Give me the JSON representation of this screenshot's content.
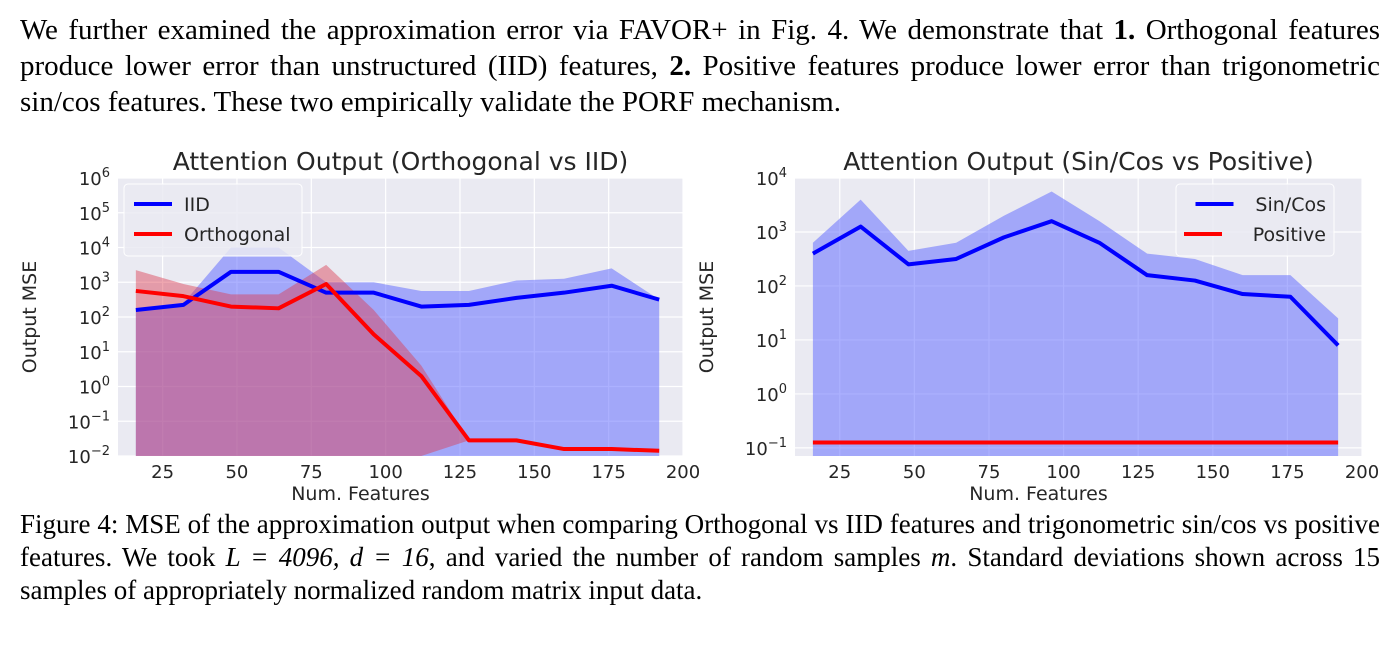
{
  "paragraph": {
    "p1": "We further examined the approximation error via FAVOR+ in Fig. 4. We demonstrate that ",
    "b1": "1.",
    "p2": " Orthogonal features produce lower error than unstructured (IID) features, ",
    "b2": "2.",
    "p3": " Positive features produce lower error than trigonometric ",
    "math": "sin/cos",
    "p4": " features. These two empirically validate the PORF mechanism."
  },
  "caption": {
    "label": "Figure 4:",
    "t1": " MSE of the approximation output when comparing Orthogonal vs IID features and trigonometric ",
    "m1": "sin/cos",
    "t2": " vs positive features. We took ",
    "m2": "L = 4096, d = 16",
    "t3": ", and varied the number of random samples ",
    "m3": "m",
    "t4": ". Standard deviations shown across 15 samples of appropriately normalized random matrix input data."
  },
  "chart_data": [
    {
      "type": "line",
      "title": "Attention Output (Orthogonal vs IID)",
      "xlabel": "Num. Features",
      "ylabel": "Output MSE",
      "yscale": "log",
      "xlim": [
        10,
        200
      ],
      "ylim_exp": [
        -2,
        6
      ],
      "xticks": [
        25,
        50,
        75,
        100,
        125,
        150,
        175,
        200
      ],
      "yticks": [
        "10^-2",
        "10^-1",
        "10^0",
        "10^1",
        "10^2",
        "10^3",
        "10^4",
        "10^5",
        "10^6"
      ],
      "legend": "top-left",
      "grid": true,
      "series": [
        {
          "name": "IID",
          "color": "#0000ff",
          "x": [
            16,
            32,
            48,
            64,
            80,
            96,
            112,
            128,
            144,
            160,
            176,
            192
          ],
          "y_log10": [
            2.2,
            2.35,
            3.3,
            3.3,
            2.7,
            2.7,
            2.3,
            2.35,
            2.55,
            2.7,
            2.9,
            2.5
          ],
          "band_upper_log10": [
            2.2,
            2.4,
            4.0,
            4.0,
            3.0,
            3.0,
            2.75,
            2.75,
            3.05,
            3.1,
            3.4,
            2.5
          ],
          "band_lower_log10": [
            -2,
            -2,
            -2,
            -2,
            -2,
            -2,
            -2,
            -2,
            -2,
            -2,
            -2,
            -2
          ]
        },
        {
          "name": "Orthogonal",
          "color": "#ff0000",
          "x": [
            16,
            32,
            48,
            64,
            80,
            96,
            112,
            128,
            144,
            160,
            176,
            192
          ],
          "y_log10": [
            2.75,
            2.6,
            2.3,
            2.25,
            2.95,
            1.5,
            0.3,
            -1.55,
            -1.55,
            -1.8,
            -1.8,
            -1.85
          ],
          "band_upper_log10": [
            3.35,
            2.95,
            2.65,
            2.65,
            3.5,
            2.2,
            0.6,
            -1.55,
            -1.55,
            -1.8,
            -1.8,
            -1.85
          ],
          "band_lower_log10": [
            -2,
            -2,
            -2,
            -2,
            -2,
            -2,
            -2,
            -1.55,
            -1.55,
            -1.8,
            -1.8,
            -1.85
          ]
        }
      ]
    },
    {
      "type": "line",
      "title": "Attention Output (Sin/Cos vs Positive)",
      "xlabel": "Num. Features",
      "ylabel": "Output MSE",
      "yscale": "log",
      "xlim": [
        10,
        200
      ],
      "ylim_exp": [
        -1.15,
        4
      ],
      "xticks": [
        25,
        50,
        75,
        100,
        125,
        150,
        175,
        200
      ],
      "yticks": [
        "10^-1",
        "10^0",
        "10^1",
        "10^2",
        "10^3",
        "10^4"
      ],
      "legend": "top-right",
      "grid": true,
      "series": [
        {
          "name": "Sin/Cos",
          "color": "#0000ff",
          "x": [
            16,
            32,
            48,
            64,
            80,
            96,
            112,
            128,
            144,
            160,
            176,
            192
          ],
          "y_log10": [
            2.6,
            3.1,
            2.4,
            2.5,
            2.9,
            3.2,
            2.8,
            2.2,
            2.1,
            1.85,
            1.8,
            0.9
          ],
          "band_upper_log10": [
            2.8,
            3.6,
            2.65,
            2.8,
            3.3,
            3.75,
            3.2,
            2.6,
            2.5,
            2.2,
            2.2,
            1.4
          ],
          "band_lower_log10": [
            -1.15,
            -1.15,
            -1.15,
            -1.15,
            -1.15,
            -1.15,
            -1.15,
            -1.15,
            -1.15,
            -1.15,
            -1.15,
            -1.15
          ]
        },
        {
          "name": "Positive",
          "color": "#ff0000",
          "x": [
            16,
            32,
            48,
            64,
            80,
            96,
            112,
            128,
            144,
            160,
            176,
            192
          ],
          "y_log10": [
            -0.9,
            -0.9,
            -0.9,
            -0.9,
            -0.9,
            -0.9,
            -0.9,
            -0.9,
            -0.9,
            -0.9,
            -0.9,
            -0.9
          ],
          "band_upper_log10": [
            -0.9,
            -0.9,
            -0.9,
            -0.9,
            -0.9,
            -0.9,
            -0.9,
            -0.9,
            -0.9,
            -0.9,
            -0.9,
            -0.9
          ],
          "band_lower_log10": [
            -0.9,
            -0.9,
            -0.9,
            -0.9,
            -0.9,
            -0.9,
            -0.9,
            -0.9,
            -0.9,
            -0.9,
            -0.9,
            -0.9
          ]
        }
      ]
    }
  ]
}
